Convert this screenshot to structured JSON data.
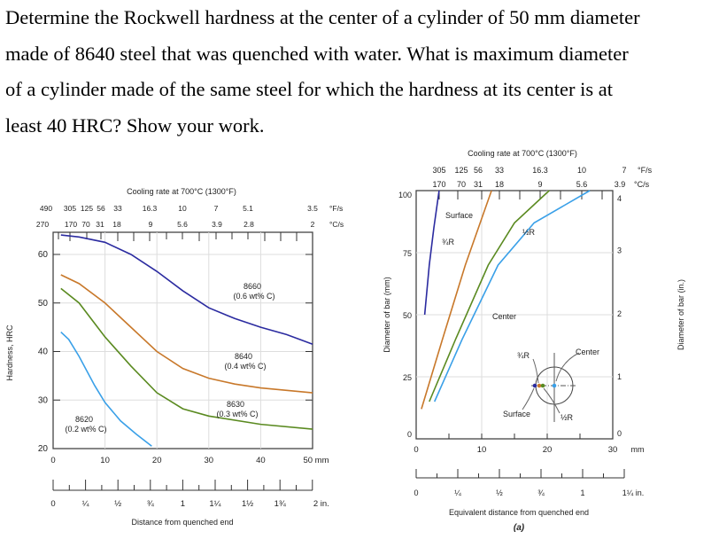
{
  "question": {
    "lines": [
      "Determine the Rockwell hardness at the center of a cylinder of 50 mm diameter",
      "made of 8640 steel that was quenched with water. What is maximum diameter",
      "of a cylinder made of the same steel for which the hardness at its center is at",
      "least 40 HRC? Show your work."
    ]
  },
  "chart_data": [
    {
      "type": "line",
      "title": "Cooling rate at 700°C (1300°F)",
      "ylabel": "Hardness, HRC",
      "xlabel": "Distance from quenched end",
      "x_unit": "mm",
      "xlim": [
        0,
        50
      ],
      "ylim": [
        20,
        65
      ],
      "x_ticks": [
        "0",
        "10",
        "20",
        "30",
        "40",
        "50 mm"
      ],
      "y_ticks": [
        "20",
        "30",
        "40",
        "50",
        "60"
      ],
      "inch_ticks": [
        "0",
        "¼",
        "½",
        "¾",
        "1",
        "1¼",
        "1½",
        "1¾",
        "2 in."
      ],
      "cooling_rate_F": [
        "490",
        "305",
        "125",
        "56",
        "33",
        "16.3",
        "10",
        "7",
        "5.1",
        "3.5",
        "°F/s"
      ],
      "cooling_rate_C": [
        "270",
        "170",
        "70",
        "31",
        "18",
        "9",
        "5.6",
        "3.9",
        "2.8",
        "2",
        "°C/s"
      ],
      "grid": true,
      "series": [
        {
          "name": "8660",
          "label2": "(0.6 wt% C)",
          "color": "#2b2ba0",
          "x": [
            1.5,
            5,
            10,
            15,
            20,
            25,
            30,
            35,
            40,
            45,
            50
          ],
          "y": [
            64,
            63.6,
            62.5,
            60,
            56.5,
            52.5,
            49,
            46.8,
            45,
            43.5,
            41.5
          ]
        },
        {
          "name": "8640",
          "label2": "(0.4 wt% C)",
          "color": "#c8782a",
          "x": [
            1.5,
            5,
            10,
            15,
            20,
            25,
            30,
            35,
            40,
            45,
            50
          ],
          "y": [
            55.8,
            54,
            50,
            45,
            40,
            36.5,
            34.5,
            33.3,
            32.5,
            32,
            31.5
          ]
        },
        {
          "name": "8630",
          "label2": "(0.3 wt% C)",
          "color": "#5a8a20",
          "x": [
            1.5,
            5,
            10,
            15,
            20,
            25,
            30,
            40,
            50
          ],
          "y": [
            53,
            50,
            43,
            37,
            31.5,
            28.2,
            26.7,
            25,
            24
          ]
        },
        {
          "name": "8620",
          "label2": "(0.2 wt% C)",
          "color": "#3aa0e8",
          "x": [
            1.5,
            3,
            5,
            8,
            10,
            13,
            16,
            19
          ],
          "y": [
            44,
            42.5,
            39,
            33,
            29.5,
            25.7,
            23,
            20.5
          ]
        }
      ]
    },
    {
      "type": "line",
      "title": "Cooling rate at 700°C (1300°F)",
      "ylabel": "Diameter of bar (mm)",
      "ylabel_right": "Diameter of bar (in.)",
      "xlabel": "Equivalent distance from quenched end",
      "caption": "(a)",
      "x_unit": "mm",
      "xlim": [
        0,
        30
      ],
      "ylim": [
        0,
        100
      ],
      "x_ticks": [
        "0",
        "10",
        "20",
        "30"
      ],
      "x_unit_label": "mm",
      "y_ticks": [
        "0",
        "25",
        "50",
        "75",
        "100"
      ],
      "y_ticks_right": [
        "0",
        "1",
        "2",
        "3",
        "4"
      ],
      "inch_ticks": [
        "0",
        "¼",
        "½",
        "¾",
        "1",
        "1¼ in."
      ],
      "cooling_rate_F": [
        "305",
        "125",
        "56",
        "33",
        "16.3",
        "10",
        "7",
        "°F/s"
      ],
      "cooling_rate_C": [
        "170",
        "70",
        "31",
        "18",
        "9",
        "5.6",
        "3.9",
        "°C/s"
      ],
      "grid": true,
      "series": [
        {
          "name": "Surface",
          "color": "#2b2ba0",
          "x": [
            1.3,
            2,
            2.7,
            3.5
          ],
          "y": [
            50,
            70,
            85,
            100
          ]
        },
        {
          "name": "¾R",
          "color": "#c8782a",
          "x": [
            0.8,
            4,
            7.5,
            11.5
          ],
          "y": [
            12,
            40,
            70,
            100
          ]
        },
        {
          "name": "½R",
          "color": "#5a8a20",
          "x": [
            2,
            6,
            11,
            15,
            20.3
          ],
          "y": [
            15,
            40,
            70,
            87,
            100
          ]
        },
        {
          "name": "Center",
          "color": "#3aa0e8",
          "x": [
            2.8,
            7,
            12.5,
            18,
            26.5
          ],
          "y": [
            15,
            40,
            70,
            87,
            100
          ]
        }
      ],
      "inset_labels": [
        "¾R",
        "Center",
        "Surface",
        "½R"
      ]
    }
  ]
}
